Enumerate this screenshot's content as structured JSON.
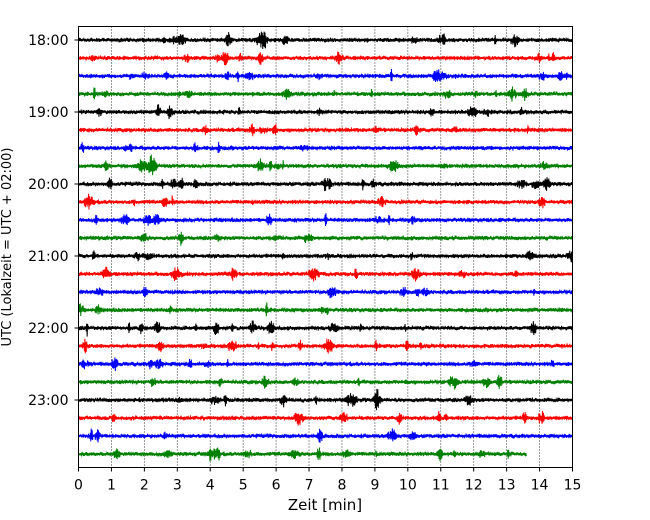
{
  "chart_data": {
    "type": "line",
    "subtype": "helicorder",
    "xlabel": "Zeit  [min]",
    "ylabel": "UTC (Lokalzeit = UTC + 02:00)",
    "xlim": [
      0,
      15
    ],
    "x_ticks": [
      "0",
      "1",
      "2",
      "3",
      "4",
      "5",
      "6",
      "7",
      "8",
      "9",
      "10",
      "11",
      "12",
      "13",
      "14",
      "15"
    ],
    "y_tick_labels": [
      "18:00",
      "19:00",
      "20:00",
      "21:00",
      "22:00",
      "23:00"
    ],
    "trace_start_times": [
      "18:00",
      "18:15",
      "18:30",
      "18:45",
      "19:00",
      "19:15",
      "19:30",
      "19:45",
      "20:00",
      "20:15",
      "20:30",
      "20:45",
      "21:00",
      "21:15",
      "21:30",
      "21:45",
      "22:00",
      "22:15",
      "22:30",
      "22:45",
      "23:00",
      "23:15",
      "23:30",
      "23:45"
    ],
    "trace_colors": [
      "#000000",
      "#ff0000",
      "#0000ff",
      "#008000"
    ],
    "last_trace_end_min": 13.6,
    "grid": {
      "x": "dotted vertical",
      "y": false
    },
    "legend": "none"
  }
}
